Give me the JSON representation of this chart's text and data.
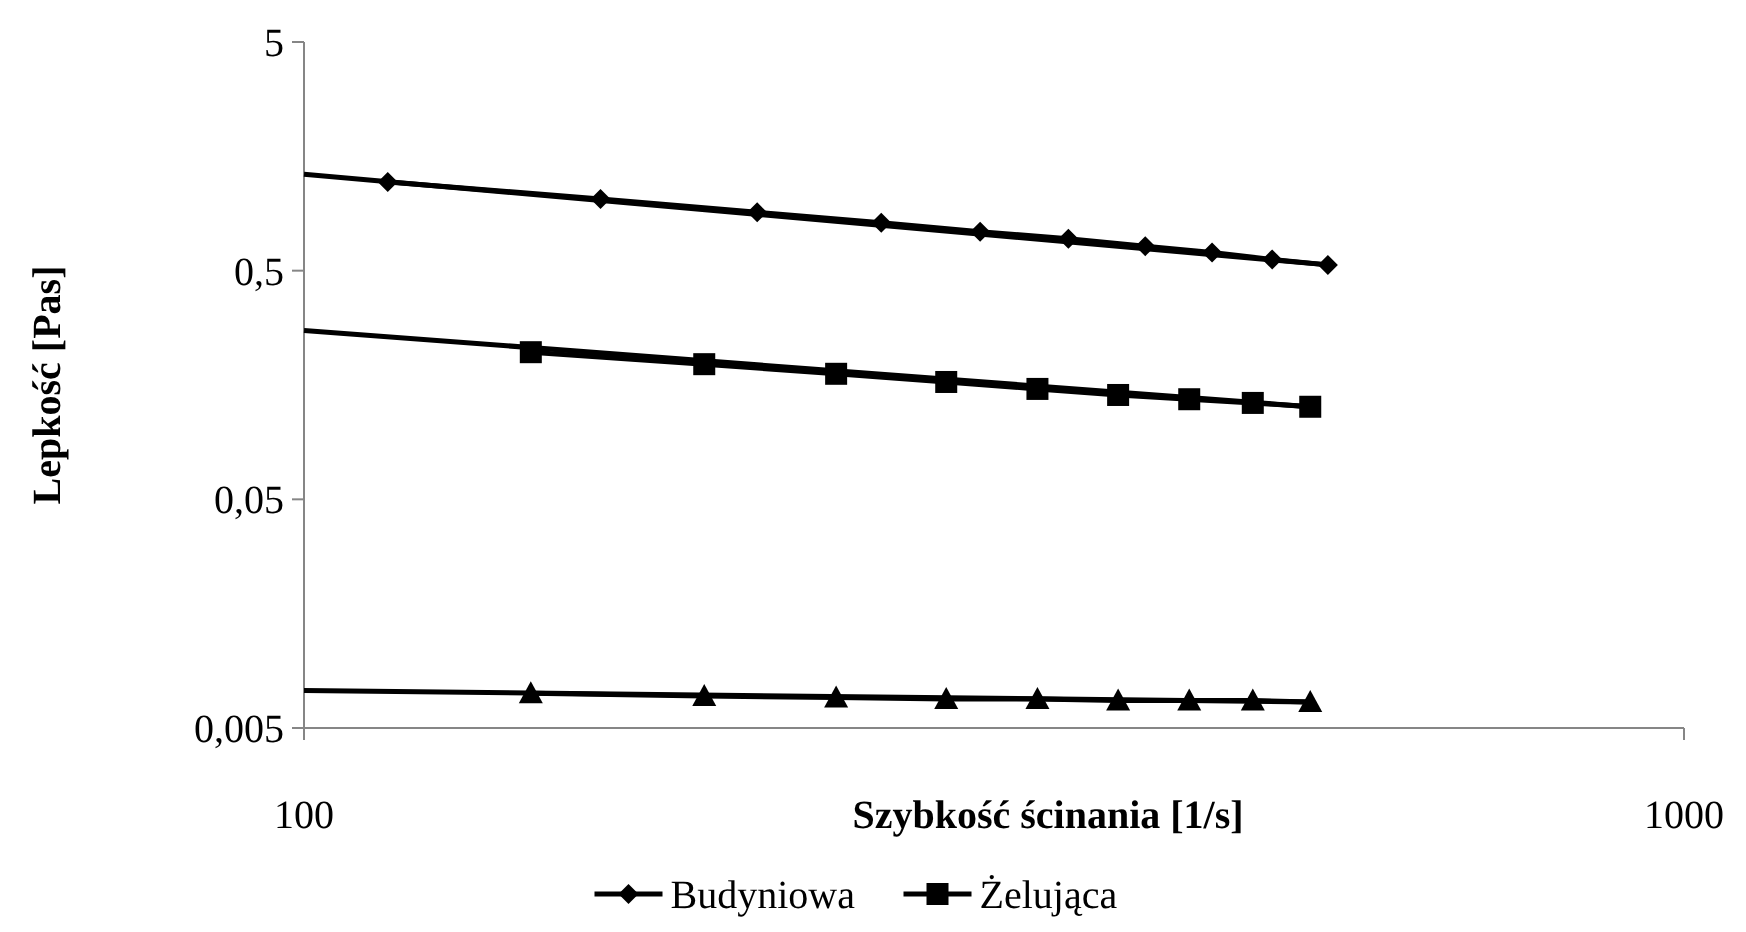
{
  "chart_data": {
    "type": "line",
    "xlabel": "Szybkość ścinania [1/s]",
    "ylabel": "Lepkość [Pas]",
    "log": "xy",
    "xlim": [
      100,
      1000
    ],
    "xticks": [
      100,
      1000
    ],
    "ylim": [
      0.005,
      5
    ],
    "yticks": [
      {
        "value": 0.005,
        "label": "0,005"
      },
      {
        "value": 0.05,
        "label": "0,05"
      },
      {
        "value": 0.5,
        "label": "0,5"
      },
      {
        "value": 5,
        "label": "5"
      }
    ],
    "grid": false,
    "legend": "bottom",
    "series": [
      {
        "name": "Budyniowa",
        "color": "#000000",
        "marker": "diamond",
        "x": [
          115,
          164,
          213,
          262,
          309,
          358,
          407,
          455,
          503,
          552
        ],
        "values": [
          1.22,
          1.03,
          0.9,
          0.81,
          0.74,
          0.69,
          0.64,
          0.6,
          0.56,
          0.53
        ]
      },
      {
        "name": "Żelująca",
        "color": "#000000",
        "marker": "square",
        "x": [
          146,
          195,
          243,
          292,
          340,
          389,
          438,
          487,
          536
        ],
        "values": [
          0.22,
          0.195,
          0.177,
          0.163,
          0.152,
          0.143,
          0.137,
          0.132,
          0.127
        ]
      },
      {
        "color": "#000000",
        "marker": "triangle",
        "x": [
          146,
          195,
          243,
          292,
          340,
          389,
          438,
          487,
          536
        ],
        "values": [
          0.0071,
          0.0069,
          0.0068,
          0.0067,
          0.0067,
          0.0066,
          0.0066,
          0.0066,
          0.0065
        ]
      },
      {
        "type": "line",
        "color": "#000000",
        "marker": "none",
        "x": [
          100,
          552
        ],
        "values": [
          1.32,
          0.53
        ]
      },
      {
        "type": "line",
        "color": "#000000",
        "marker": "none",
        "x": [
          100,
          536
        ],
        "values": [
          0.274,
          0.127
        ]
      },
      {
        "type": "line",
        "color": "#000000",
        "marker": "none",
        "x": [
          100,
          536
        ],
        "values": [
          0.0073,
          0.0065
        ]
      }
    ]
  }
}
